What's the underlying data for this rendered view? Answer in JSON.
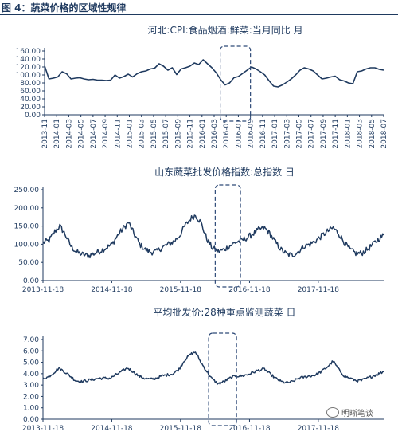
{
  "figure": {
    "title": "图 4：蔬菜价格的区域性规律"
  },
  "chart_data": [
    {
      "type": "line",
      "title": "河北:CPI:食品烟酒:鲜菜:当月同比 月",
      "ylim": [
        0,
        160
      ],
      "yticks": [
        "0.00",
        "20.00",
        "40.00",
        "60.00",
        "80.00",
        "100.00",
        "120.00",
        "140.00",
        "160.00"
      ],
      "x_tick_labels": [
        "2013-11",
        "2014-01",
        "2014-03",
        "2014-05",
        "2014-07",
        "2014-09",
        "2014-11",
        "2015-01",
        "2015-03",
        "2015-05",
        "2015-07",
        "2015-09",
        "2015-11",
        "2016-01",
        "2016-03",
        "2016-05",
        "2016-07",
        "2016-09",
        "2016-11",
        "2017-01",
        "2017-03",
        "2017-05",
        "2017-07",
        "2017-09",
        "2017-11",
        "2018-01",
        "2018-03",
        "2018-05",
        "2018-07"
      ],
      "x_start": "2013-11",
      "x_end": "2018-07",
      "series": [
        {
          "color": "#1f3a5f",
          "values": [
            123,
            90,
            92,
            95,
            108,
            103,
            90,
            92,
            93,
            90,
            88,
            89,
            87,
            87,
            86,
            87,
            100,
            92,
            96,
            102,
            95,
            103,
            108,
            110,
            115,
            117,
            128,
            122,
            112,
            118,
            101,
            115,
            118,
            122,
            130,
            126,
            138,
            128,
            118,
            105,
            88,
            75,
            80,
            93,
            96,
            104,
            112,
            120,
            115,
            108,
            100,
            85,
            72,
            70,
            75,
            82,
            90,
            100,
            112,
            118,
            115,
            110,
            100,
            90,
            92,
            95,
            97,
            88,
            85,
            80,
            78,
            108,
            110,
            115,
            118,
            118,
            114,
            112
          ],
          "x_start": "2013-11",
          "x_end": "2018-07"
        }
      ],
      "highlight": {
        "from": "2016-04",
        "to": "2016-09",
        "style": "dashed"
      },
      "grid": false
    },
    {
      "type": "line",
      "title": "山东蔬菜批发价格指数:总指数 日",
      "ylim": [
        0,
        250
      ],
      "yticks": [
        "0.00",
        "50.00",
        "100.00",
        "150.00",
        "200.00",
        "250.00"
      ],
      "x_tick_labels": [
        "2013-11-18",
        "2014-11-18",
        "2015-11-18",
        "2016-11-18",
        "2017-11-18"
      ],
      "x_start": "2013-11-18",
      "x_end": "2018-10-31",
      "series": [
        {
          "color": "#1f3a5f",
          "anchors": [
            [
              "2013-11-18",
              105
            ],
            [
              "2013-12-20",
              110
            ],
            [
              "2014-01-20",
              135
            ],
            [
              "2014-02-15",
              150
            ],
            [
              "2014-03-15",
              128
            ],
            [
              "2014-04-15",
              95
            ],
            [
              "2014-05-15",
              78
            ],
            [
              "2014-06-15",
              72
            ],
            [
              "2014-07-20",
              68
            ],
            [
              "2014-08-20",
              75
            ],
            [
              "2014-09-20",
              82
            ],
            [
              "2014-10-20",
              90
            ],
            [
              "2014-11-20",
              100
            ],
            [
              "2014-12-20",
              125
            ],
            [
              "2015-01-20",
              145
            ],
            [
              "2015-02-15",
              160
            ],
            [
              "2015-03-15",
              130
            ],
            [
              "2015-04-15",
              100
            ],
            [
              "2015-05-15",
              85
            ],
            [
              "2015-06-15",
              78
            ],
            [
              "2015-07-15",
              80
            ],
            [
              "2015-08-15",
              92
            ],
            [
              "2015-09-15",
              100
            ],
            [
              "2015-10-15",
              108
            ],
            [
              "2015-11-15",
              125
            ],
            [
              "2015-12-10",
              150
            ],
            [
              "2016-01-10",
              170
            ],
            [
              "2016-02-05",
              180
            ],
            [
              "2016-03-05",
              160
            ],
            [
              "2016-04-05",
              115
            ],
            [
              "2016-05-05",
              90
            ],
            [
              "2016-06-05",
              80
            ],
            [
              "2016-07-05",
              85
            ],
            [
              "2016-08-05",
              95
            ],
            [
              "2016-09-05",
              105
            ],
            [
              "2016-10-05",
              110
            ],
            [
              "2016-11-05",
              118
            ],
            [
              "2016-12-05",
              128
            ],
            [
              "2017-01-05",
              140
            ],
            [
              "2017-02-05",
              145
            ],
            [
              "2017-03-05",
              130
            ],
            [
              "2017-04-05",
              105
            ],
            [
              "2017-05-05",
              85
            ],
            [
              "2017-06-05",
              72
            ],
            [
              "2017-07-05",
              70
            ],
            [
              "2017-08-05",
              80
            ],
            [
              "2017-09-05",
              95
            ],
            [
              "2017-10-05",
              100
            ],
            [
              "2017-11-05",
              110
            ],
            [
              "2017-12-05",
              122
            ],
            [
              "2018-01-05",
              135
            ],
            [
              "2018-02-05",
              145
            ],
            [
              "2018-03-05",
              130
            ],
            [
              "2018-04-05",
              105
            ],
            [
              "2018-05-05",
              85
            ],
            [
              "2018-06-05",
              75
            ],
            [
              "2018-07-05",
              75
            ],
            [
              "2018-08-05",
              85
            ],
            [
              "2018-09-05",
              100
            ],
            [
              "2018-10-05",
              115
            ],
            [
              "2018-10-31",
              125
            ]
          ]
        }
      ],
      "highlight": {
        "from": "2016-05-20",
        "to": "2016-10-01",
        "style": "dashed"
      },
      "grid": false
    },
    {
      "type": "line",
      "title": "平均批发价:28种重点监测蔬菜 日",
      "ylim": [
        0,
        7
      ],
      "yticks": [
        "0.00",
        "1.00",
        "2.00",
        "3.00",
        "4.00",
        "5.00",
        "6.00",
        "7.00"
      ],
      "x_tick_labels": [
        "2013-11-18",
        "2014-11-18",
        "2015-11-18",
        "2016-11-18",
        "2017-11-18"
      ],
      "x_start": "2013-11-18",
      "x_end": "2018-10-31",
      "series": [
        {
          "color": "#1f3a5f",
          "anchors": [
            [
              "2013-11-18",
              3.6
            ],
            [
              "2013-12-15",
              3.7
            ],
            [
              "2014-01-15",
              4.1
            ],
            [
              "2014-02-10",
              4.5
            ],
            [
              "2014-03-10",
              4.2
            ],
            [
              "2014-04-10",
              3.8
            ],
            [
              "2014-05-10",
              3.4
            ],
            [
              "2014-06-10",
              3.3
            ],
            [
              "2014-07-10",
              3.4
            ],
            [
              "2014-08-10",
              3.5
            ],
            [
              "2014-09-10",
              3.6
            ],
            [
              "2014-10-10",
              3.6
            ],
            [
              "2014-11-10",
              3.6
            ],
            [
              "2014-12-10",
              3.9
            ],
            [
              "2015-01-10",
              4.2
            ],
            [
              "2015-02-10",
              4.5
            ],
            [
              "2015-03-10",
              4.2
            ],
            [
              "2015-04-10",
              3.8
            ],
            [
              "2015-05-10",
              3.6
            ],
            [
              "2015-06-10",
              3.5
            ],
            [
              "2015-07-10",
              3.6
            ],
            [
              "2015-08-10",
              3.8
            ],
            [
              "2015-09-10",
              3.9
            ],
            [
              "2015-10-10",
              4.0
            ],
            [
              "2015-11-10",
              4.4
            ],
            [
              "2015-12-10",
              5.2
            ],
            [
              "2016-01-10",
              5.7
            ],
            [
              "2016-02-05",
              5.9
            ],
            [
              "2016-03-05",
              5.0
            ],
            [
              "2016-04-05",
              4.2
            ],
            [
              "2016-05-05",
              3.5
            ],
            [
              "2016-06-05",
              3.1
            ],
            [
              "2016-07-05",
              3.3
            ],
            [
              "2016-08-05",
              3.6
            ],
            [
              "2016-09-05",
              3.8
            ],
            [
              "2016-10-05",
              3.8
            ],
            [
              "2016-11-05",
              3.9
            ],
            [
              "2016-12-05",
              4.1
            ],
            [
              "2017-01-05",
              4.3
            ],
            [
              "2017-02-05",
              4.4
            ],
            [
              "2017-03-05",
              4.0
            ],
            [
              "2017-04-05",
              3.6
            ],
            [
              "2017-05-05",
              3.3
            ],
            [
              "2017-06-05",
              3.2
            ],
            [
              "2017-07-05",
              3.3
            ],
            [
              "2017-08-05",
              3.6
            ],
            [
              "2017-09-05",
              3.7
            ],
            [
              "2017-10-05",
              3.8
            ],
            [
              "2017-11-05",
              3.9
            ],
            [
              "2017-12-05",
              4.2
            ],
            [
              "2018-01-05",
              4.6
            ],
            [
              "2018-02-05",
              5.1
            ],
            [
              "2018-03-05",
              4.4
            ],
            [
              "2018-04-05",
              3.8
            ],
            [
              "2018-05-05",
              3.6
            ],
            [
              "2018-06-05",
              3.4
            ],
            [
              "2018-07-05",
              3.4
            ],
            [
              "2018-08-05",
              3.6
            ],
            [
              "2018-09-05",
              3.8
            ],
            [
              "2018-10-05",
              4.0
            ],
            [
              "2018-10-31",
              4.2
            ]
          ]
        }
      ],
      "highlight": {
        "from": "2016-04-15",
        "to": "2016-09-10",
        "style": "dashed"
      },
      "grid": false
    }
  ],
  "watermark": {
    "text": "明晰笔谈"
  }
}
